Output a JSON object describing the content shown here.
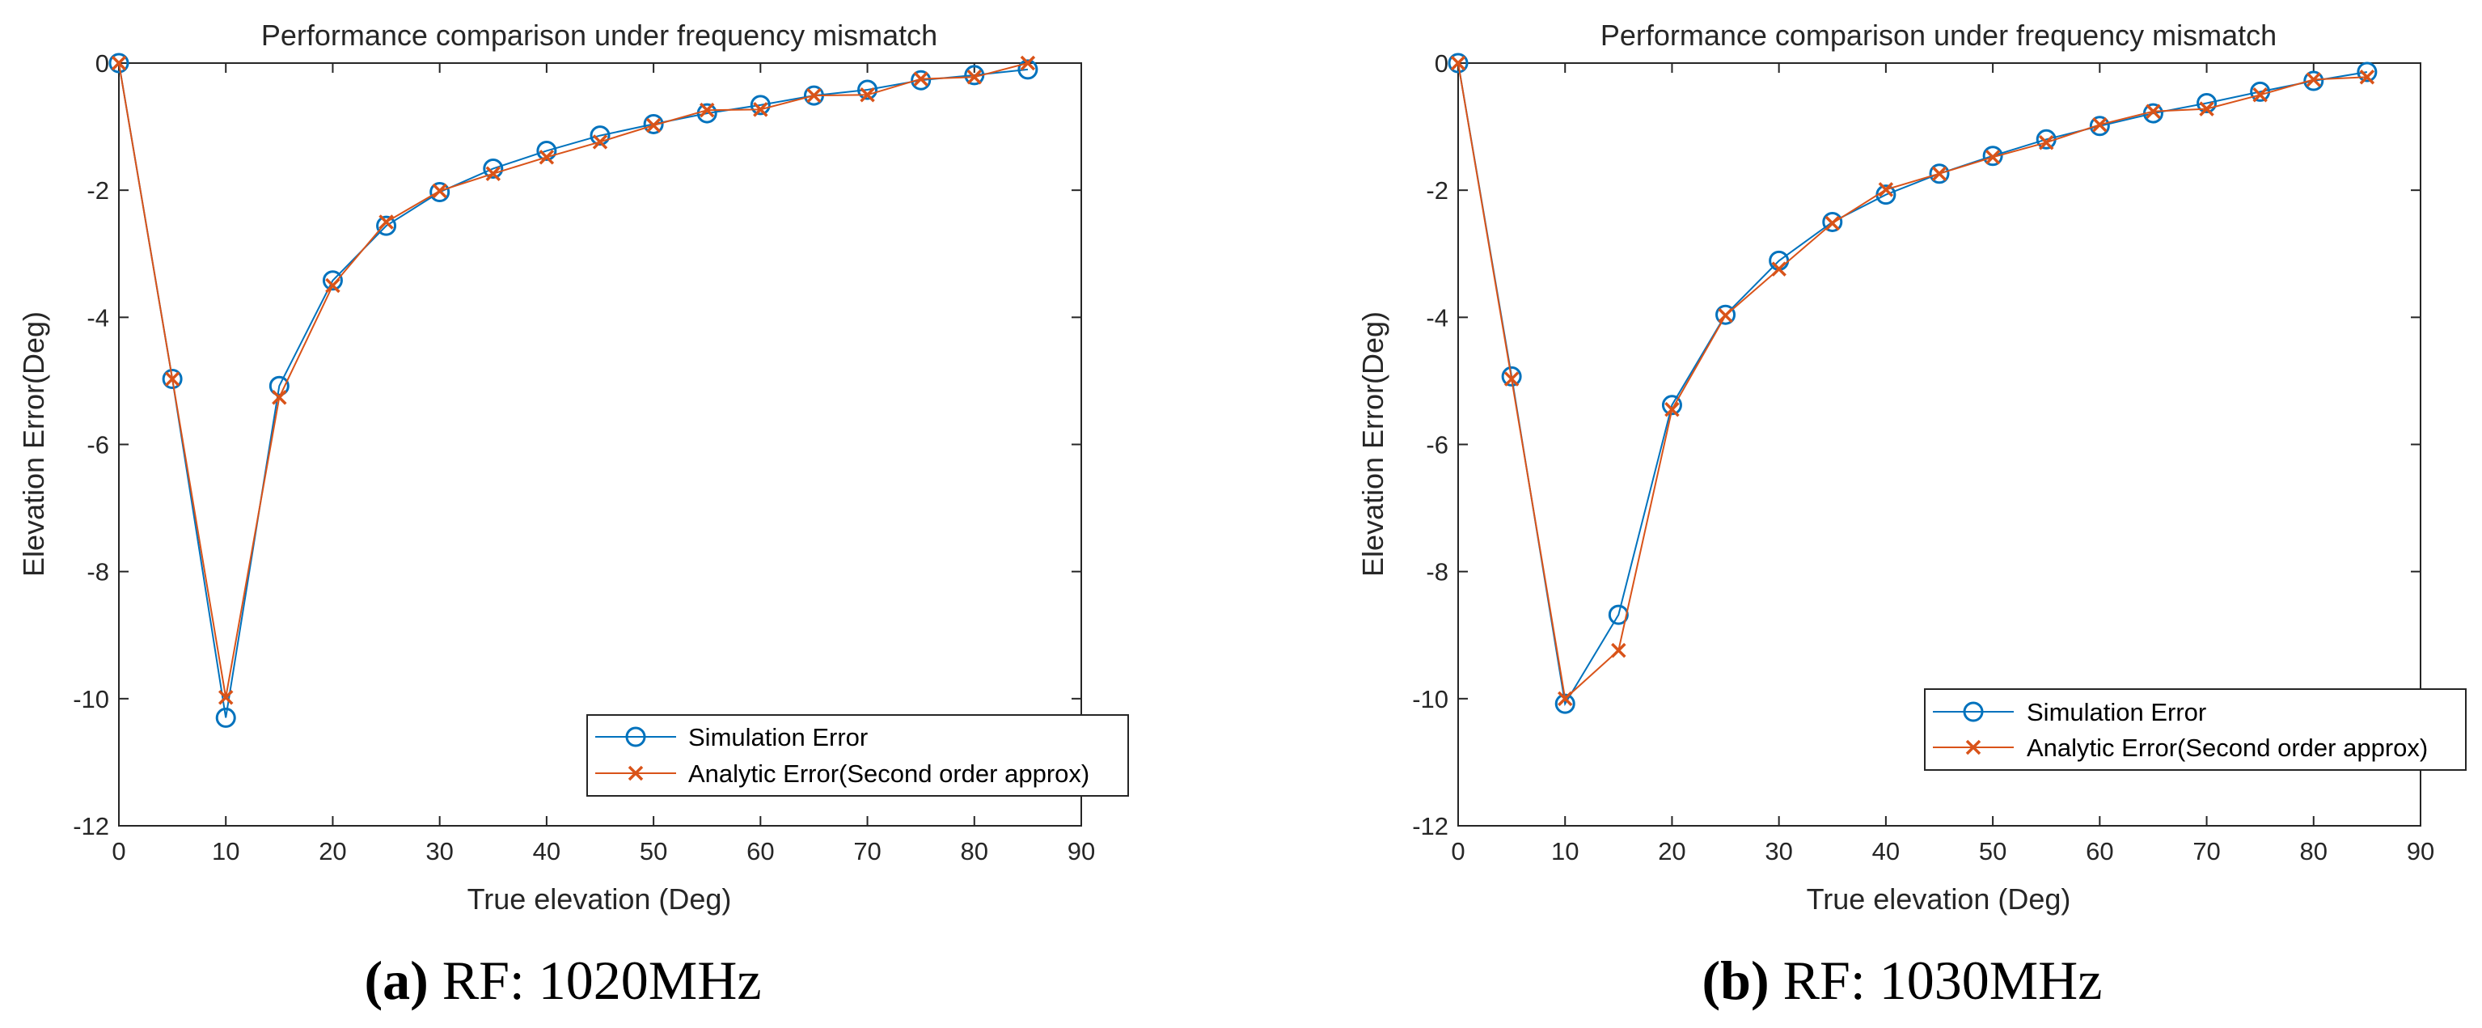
{
  "colors": {
    "simulation": "#0072BD",
    "analytic": "#D95319",
    "axes": "#262626"
  },
  "chart_data": [
    {
      "type": "line",
      "title": "Performance comparison under frequency mismatch",
      "xlabel": "True elevation (Deg)",
      "ylabel": "Elevation Error(Deg)",
      "xlim": [
        0,
        90
      ],
      "ylim": [
        -12,
        0
      ],
      "xticks": [
        0,
        10,
        20,
        30,
        40,
        50,
        60,
        70,
        80,
        90
      ],
      "yticks": [
        0,
        -2,
        -4,
        -6,
        -8,
        -10,
        -12
      ],
      "grid": false,
      "legend": "bottom-right",
      "caption_label": "(a)",
      "caption_text": "RF: 1020MHz",
      "x": [
        0,
        5,
        10,
        15,
        20,
        25,
        30,
        35,
        40,
        45,
        50,
        55,
        60,
        65,
        70,
        75,
        80,
        85
      ],
      "series": [
        {
          "name": "Simulation Error",
          "marker": "circle",
          "values": [
            0,
            -4.97,
            -10.3,
            -5.08,
            -3.42,
            -2.56,
            -2.03,
            -1.66,
            -1.38,
            -1.14,
            -0.96,
            -0.79,
            -0.66,
            -0.51,
            -0.42,
            -0.27,
            -0.19,
            -0.1
          ]
        },
        {
          "name": "Analytic Error(Second order approx)",
          "marker": "x",
          "values": [
            0,
            -4.97,
            -9.98,
            -5.26,
            -3.5,
            -2.5,
            -2.01,
            -1.74,
            -1.48,
            -1.24,
            -0.98,
            -0.74,
            -0.73,
            -0.51,
            -0.5,
            -0.25,
            -0.22,
            0
          ]
        }
      ]
    },
    {
      "type": "line",
      "title": "Performance comparison under frequency mismatch",
      "xlabel": "True elevation (Deg)",
      "ylabel": "Elevation Error(Deg)",
      "xlim": [
        0,
        90
      ],
      "ylim": [
        -12,
        0
      ],
      "xticks": [
        0,
        10,
        20,
        30,
        40,
        50,
        60,
        70,
        80,
        90
      ],
      "yticks": [
        0,
        -2,
        -4,
        -6,
        -8,
        -10,
        -12
      ],
      "grid": false,
      "legend": "bottom-right",
      "caption_label": "(b)",
      "caption_text": "RF: 1030MHz",
      "x": [
        0,
        5,
        10,
        15,
        20,
        25,
        30,
        35,
        40,
        45,
        50,
        55,
        60,
        65,
        70,
        75,
        80,
        85
      ],
      "series": [
        {
          "name": "Simulation Error",
          "marker": "circle",
          "values": [
            0,
            -4.93,
            -10.08,
            -8.68,
            -5.38,
            -3.96,
            -3.11,
            -2.5,
            -2.07,
            -1.74,
            -1.46,
            -1.2,
            -0.99,
            -0.79,
            -0.63,
            -0.45,
            -0.28,
            -0.14
          ]
        },
        {
          "name": "Analytic Error(Second order approx)",
          "marker": "x",
          "values": [
            0,
            -4.97,
            -10.0,
            -9.24,
            -5.45,
            -3.97,
            -3.24,
            -2.52,
            -1.99,
            -1.74,
            -1.48,
            -1.25,
            -0.97,
            -0.76,
            -0.72,
            -0.5,
            -0.26,
            -0.22
          ]
        }
      ]
    }
  ]
}
